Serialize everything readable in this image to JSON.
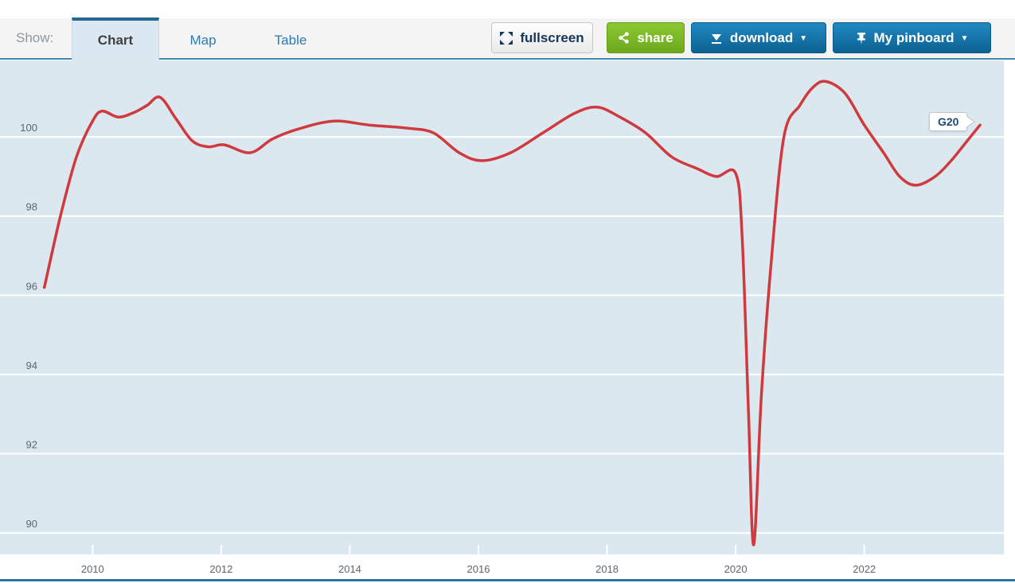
{
  "toolbar": {
    "show_label": "Show:",
    "tabs": [
      {
        "label": "Chart",
        "active": true
      },
      {
        "label": "Map",
        "active": false
      },
      {
        "label": "Table",
        "active": false
      }
    ],
    "buttons": {
      "fullscreen": {
        "label": "fullscreen",
        "icon": "expand-icon"
      },
      "share": {
        "label": "share",
        "icon": "share-icon",
        "color": "#7fb32a"
      },
      "download": {
        "label": "download",
        "icon": "download-icon",
        "caret": "▼",
        "color": "#1177ab"
      },
      "pinboard": {
        "label": "My pinboard",
        "icon": "pin-icon",
        "caret": "▼",
        "color": "#1177ab"
      }
    }
  },
  "chart_data": {
    "type": "line",
    "title": "",
    "xlabel": "",
    "ylabel": "",
    "x_ticks": [
      2010,
      2012,
      2014,
      2016,
      2018,
      2020,
      2022
    ],
    "y_ticks": [
      100,
      98,
      96,
      94,
      92,
      90
    ],
    "x_domain": [
      2008.56,
      2024.17
    ],
    "y_domain": [
      89.46,
      101.93
    ],
    "grid": "horizontal-only",
    "legend_position": "none",
    "annotation": {
      "label": "G20"
    },
    "series": [
      {
        "name": "G20",
        "color": "#d03a3e",
        "points": [
          [
            2009.25,
            96.2
          ],
          [
            2009.5,
            98.0
          ],
          [
            2009.75,
            99.5
          ],
          [
            2010.0,
            100.4
          ],
          [
            2010.15,
            100.65
          ],
          [
            2010.4,
            100.5
          ],
          [
            2010.65,
            100.62
          ],
          [
            2010.85,
            100.8
          ],
          [
            2011.05,
            101.0
          ],
          [
            2011.3,
            100.45
          ],
          [
            2011.55,
            99.9
          ],
          [
            2011.8,
            99.75
          ],
          [
            2012.05,
            99.8
          ],
          [
            2012.45,
            99.6
          ],
          [
            2012.8,
            99.95
          ],
          [
            2013.2,
            100.2
          ],
          [
            2013.75,
            100.4
          ],
          [
            2014.3,
            100.3
          ],
          [
            2014.9,
            100.22
          ],
          [
            2015.3,
            100.1
          ],
          [
            2015.7,
            99.6
          ],
          [
            2016.05,
            99.4
          ],
          [
            2016.5,
            99.6
          ],
          [
            2017.0,
            100.1
          ],
          [
            2017.5,
            100.6
          ],
          [
            2017.85,
            100.75
          ],
          [
            2018.2,
            100.5
          ],
          [
            2018.6,
            100.1
          ],
          [
            2019.0,
            99.5
          ],
          [
            2019.4,
            99.2
          ],
          [
            2019.7,
            99.0
          ],
          [
            2020.0,
            99.08
          ],
          [
            2020.1,
            97.5
          ],
          [
            2020.2,
            93.0
          ],
          [
            2020.28,
            89.7
          ],
          [
            2020.4,
            93.5
          ],
          [
            2020.55,
            96.8
          ],
          [
            2020.75,
            100.0
          ],
          [
            2021.0,
            100.8
          ],
          [
            2021.2,
            101.25
          ],
          [
            2021.4,
            101.4
          ],
          [
            2021.7,
            101.1
          ],
          [
            2022.0,
            100.3
          ],
          [
            2022.3,
            99.6
          ],
          [
            2022.55,
            99.0
          ],
          [
            2022.8,
            98.78
          ],
          [
            2023.1,
            99.0
          ],
          [
            2023.35,
            99.4
          ],
          [
            2023.6,
            99.9
          ],
          [
            2023.8,
            100.3
          ]
        ]
      }
    ],
    "colors": {
      "plot_background": "#dce8f0",
      "gridline": "#ffffff",
      "axis_label": "#5c6670",
      "bottom_border": "#2875a5"
    }
  }
}
